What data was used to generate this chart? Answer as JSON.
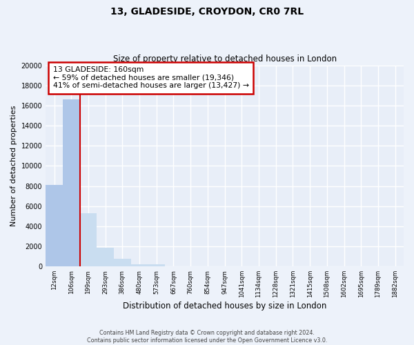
{
  "title": "13, GLADESIDE, CROYDON, CR0 7RL",
  "subtitle": "Size of property relative to detached houses in London",
  "xlabel": "Distribution of detached houses by size in London",
  "ylabel": "Number of detached properties",
  "bar_labels": [
    "12sqm",
    "106sqm",
    "199sqm",
    "293sqm",
    "386sqm",
    "480sqm",
    "573sqm",
    "667sqm",
    "760sqm",
    "854sqm",
    "947sqm",
    "1041sqm",
    "1134sqm",
    "1228sqm",
    "1321sqm",
    "1415sqm",
    "1508sqm",
    "1602sqm",
    "1695sqm",
    "1789sqm",
    "1882sqm"
  ],
  "bar_values": [
    8100,
    16600,
    5300,
    1850,
    750,
    250,
    200,
    0,
    0,
    0,
    0,
    0,
    0,
    0,
    0,
    0,
    0,
    0,
    0,
    0,
    0
  ],
  "bar_color_left": "#aec6e8",
  "bar_color_right": "#c9ddf0",
  "ylim": [
    0,
    20000
  ],
  "yticks": [
    0,
    2000,
    4000,
    6000,
    8000,
    10000,
    12000,
    14000,
    16000,
    18000,
    20000
  ],
  "prop_line_color": "#cc0000",
  "annotation_title": "13 GLADESIDE: 160sqm",
  "annotation_line1": "← 59% of detached houses are smaller (19,346)",
  "annotation_line2": "41% of semi-detached houses are larger (13,427) →",
  "annotation_box_facecolor": "#ffffff",
  "annotation_box_edgecolor": "#cc0000",
  "footer_line1": "Contains HM Land Registry data © Crown copyright and database right 2024.",
  "footer_line2": "Contains public sector information licensed under the Open Government Licence v3.0.",
  "background_color": "#edf2fa",
  "grid_color": "#ffffff",
  "axis_bg_color": "#e8eef8"
}
